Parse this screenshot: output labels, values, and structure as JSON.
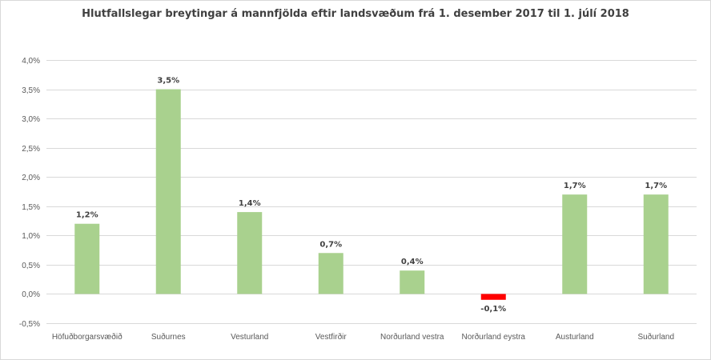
{
  "chart_data": {
    "type": "bar",
    "title": "Hlutfallslegar breytingar á mannfjölda eftir landsvæðum frá 1. desember 2017 til 1. júlí 2018",
    "xlabel": "",
    "ylabel": "",
    "categories": [
      "Höfuðborgarsvæðið",
      "Suðurnes",
      "Vesturland",
      "Vestfirðir",
      "Norðurland vestra",
      "Norðurland eystra",
      "Austurland",
      "Suðurland"
    ],
    "values": [
      1.2,
      3.5,
      1.4,
      0.7,
      0.4,
      -0.1,
      1.7,
      1.7
    ],
    "data_labels": [
      "1,2%",
      "3,5%",
      "1,4%",
      "0,7%",
      "0,4%",
      "-0,1%",
      "1,7%",
      "1,7%"
    ],
    "ylim": [
      -0.5,
      4.0
    ],
    "yticks": [
      4.0,
      3.5,
      3.0,
      2.5,
      2.0,
      1.5,
      1.0,
      0.5,
      0.0,
      -0.5
    ],
    "ytick_labels": [
      "4,0%",
      "3,5%",
      "3,0%",
      "2,5%",
      "2,0%",
      "1,5%",
      "1,0%",
      "0,5%",
      "0,0%",
      "-0,5%"
    ],
    "grid": true,
    "legend": "none",
    "colors": {
      "positive": "#a9d18e",
      "negative": "#ff0000"
    }
  }
}
